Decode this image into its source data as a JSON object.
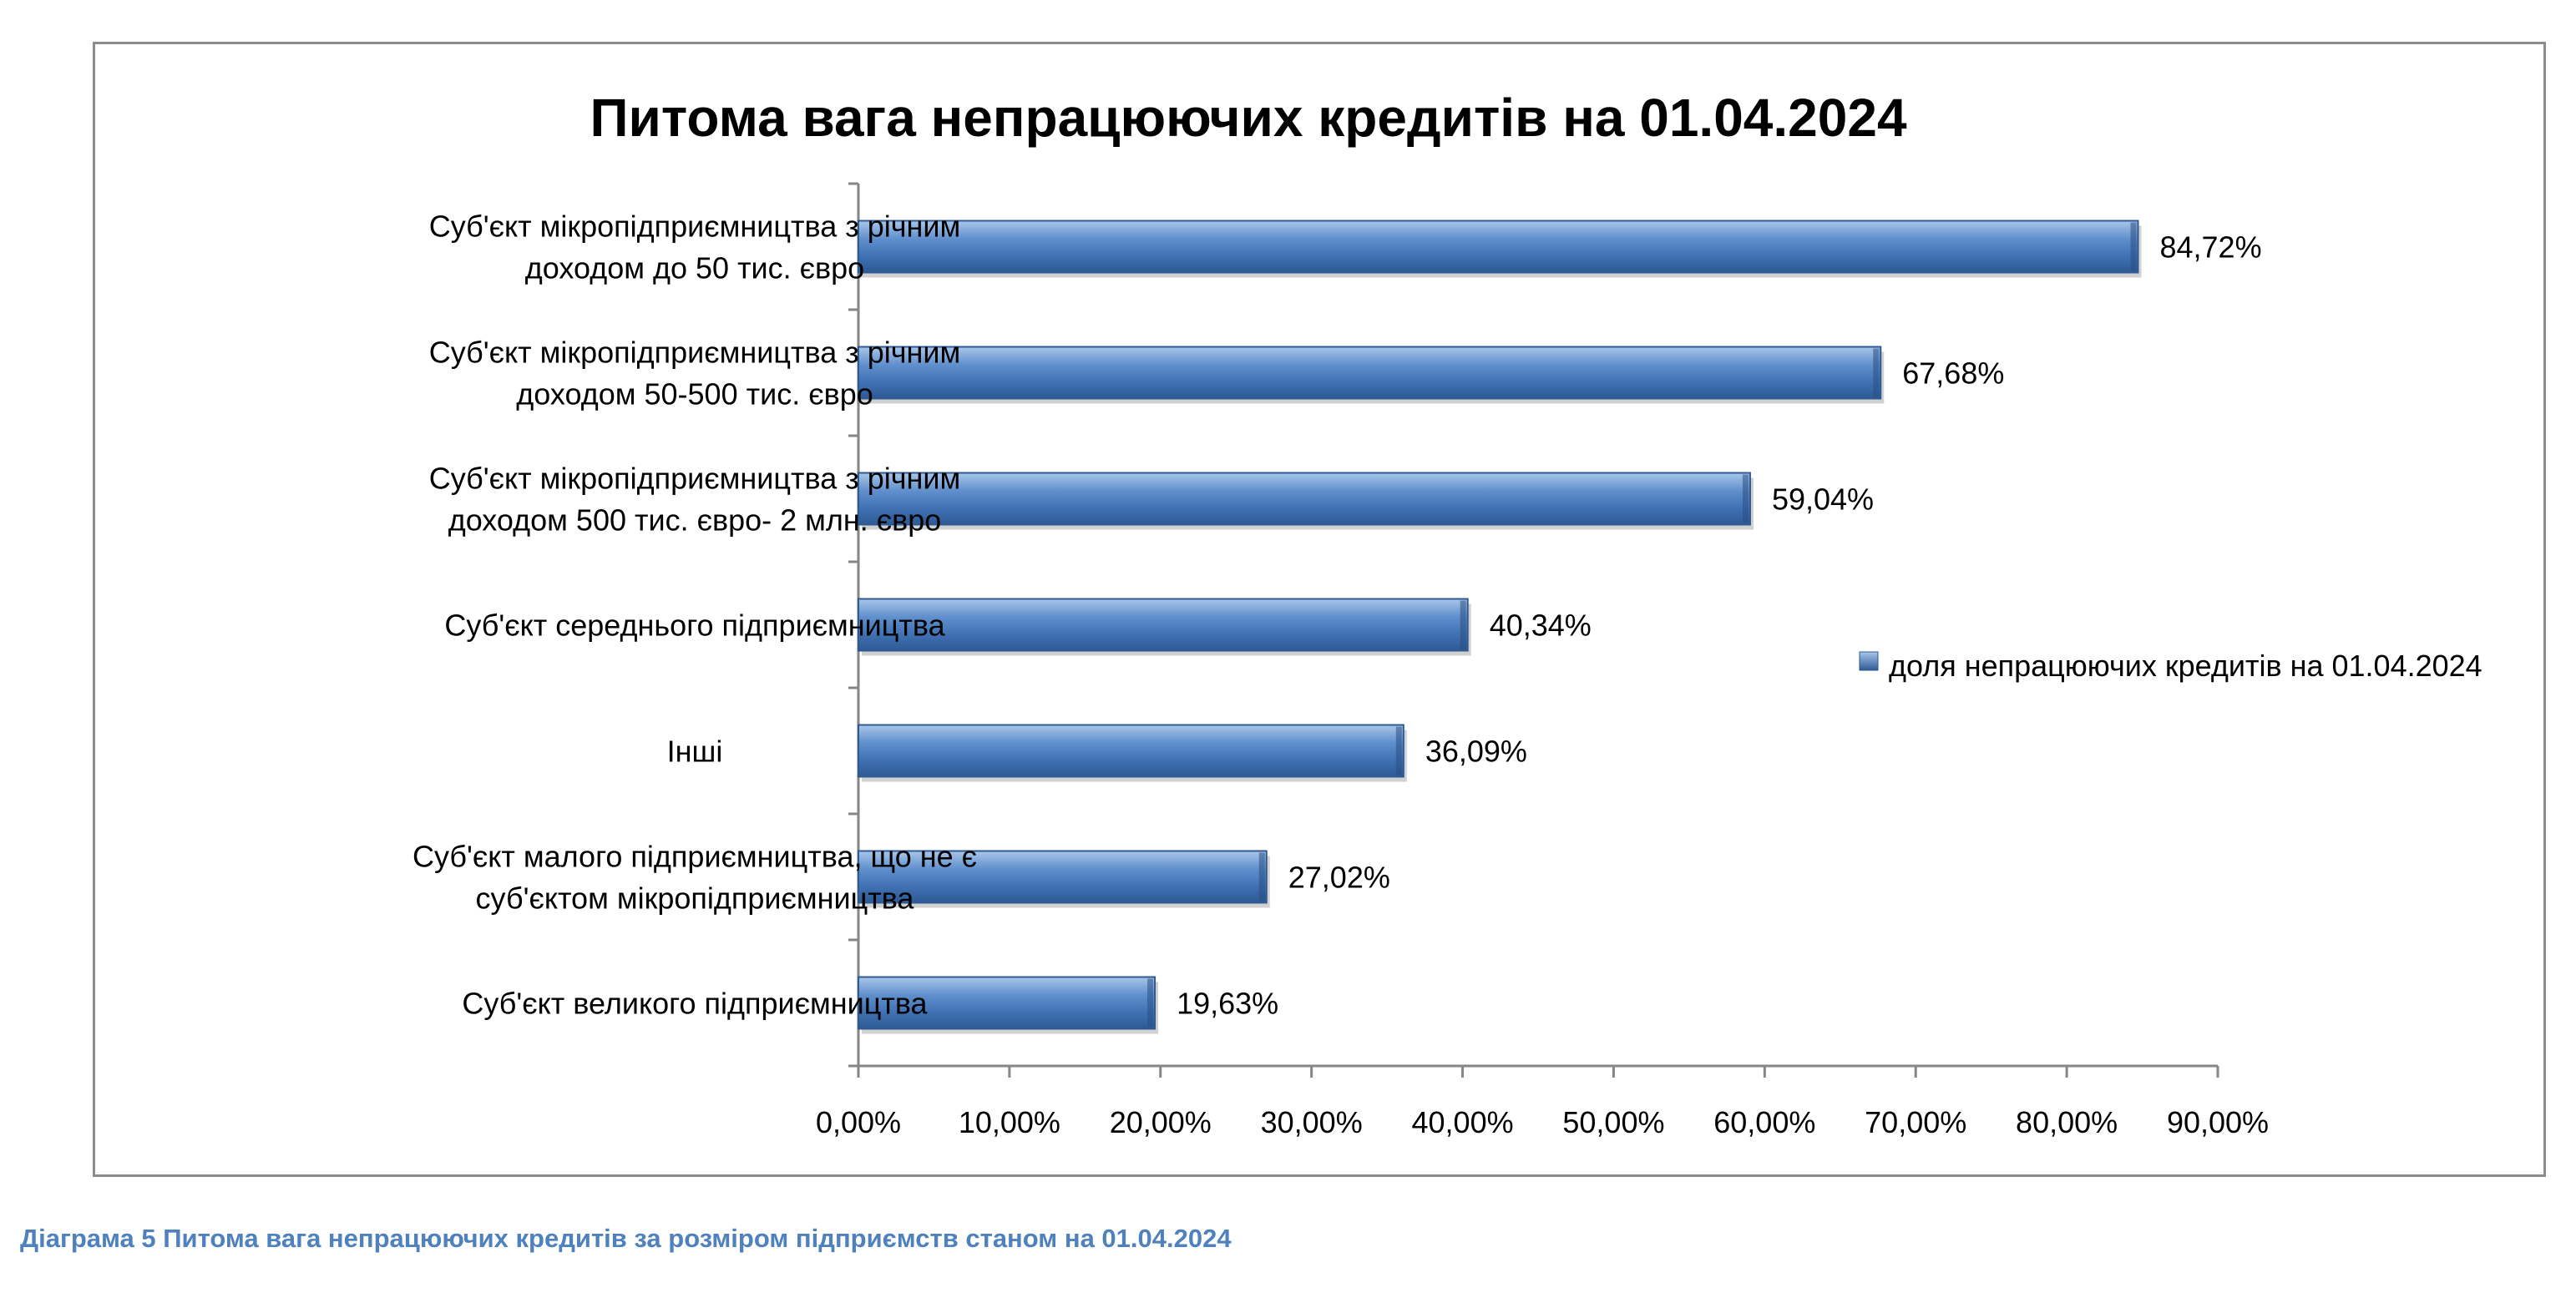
{
  "chart_data": {
    "type": "bar",
    "orientation": "horizontal",
    "title": "Питома вага непрацюючих кредитів на 01.04.2024",
    "categories": [
      [
        "Суб'єкт мікропідприємництва  з річним",
        "доходом до  50 тис. євро"
      ],
      [
        "Суб'єкт мікропідприємництва  з річним",
        "доходом 50-500 тис. євро"
      ],
      [
        "Суб'єкт мікропідприємництва  з річним",
        "доходом  500 тис. євро- 2 млн. євро"
      ],
      [
        "Суб'єкт середнього підприємництва"
      ],
      [
        "Інші"
      ],
      [
        "Суб'єкт малого підприємництва,  що не є",
        "суб'єктом мікропідприємництва"
      ],
      [
        "Суб'єкт великого підприємництва"
      ]
    ],
    "series": [
      {
        "name": "доля непрацюючих кредитів  на 01.04.2024",
        "values": [
          84.72,
          67.68,
          59.04,
          40.34,
          36.09,
          27.02,
          19.63
        ],
        "labels": [
          "84,72%",
          "67,68%",
          "59,04%",
          "40,34%",
          "36,09%",
          "27,02%",
          "19,63%"
        ],
        "color": "#4f81bd"
      }
    ],
    "xlim": [
      0,
      90
    ],
    "xticks": [
      "0,00%",
      "10,00%",
      "20,00%",
      "30,00%",
      "40,00%",
      "50,00%",
      "60,00%",
      "70,00%",
      "80,00%",
      "90,00%"
    ],
    "xlabel": "",
    "ylabel": "",
    "grid": false,
    "legend_position": "right"
  },
  "caption": "Діаграма 5 Питома вага непрацюючих кредитів за розміром підприємств станом на 01.04.2024"
}
